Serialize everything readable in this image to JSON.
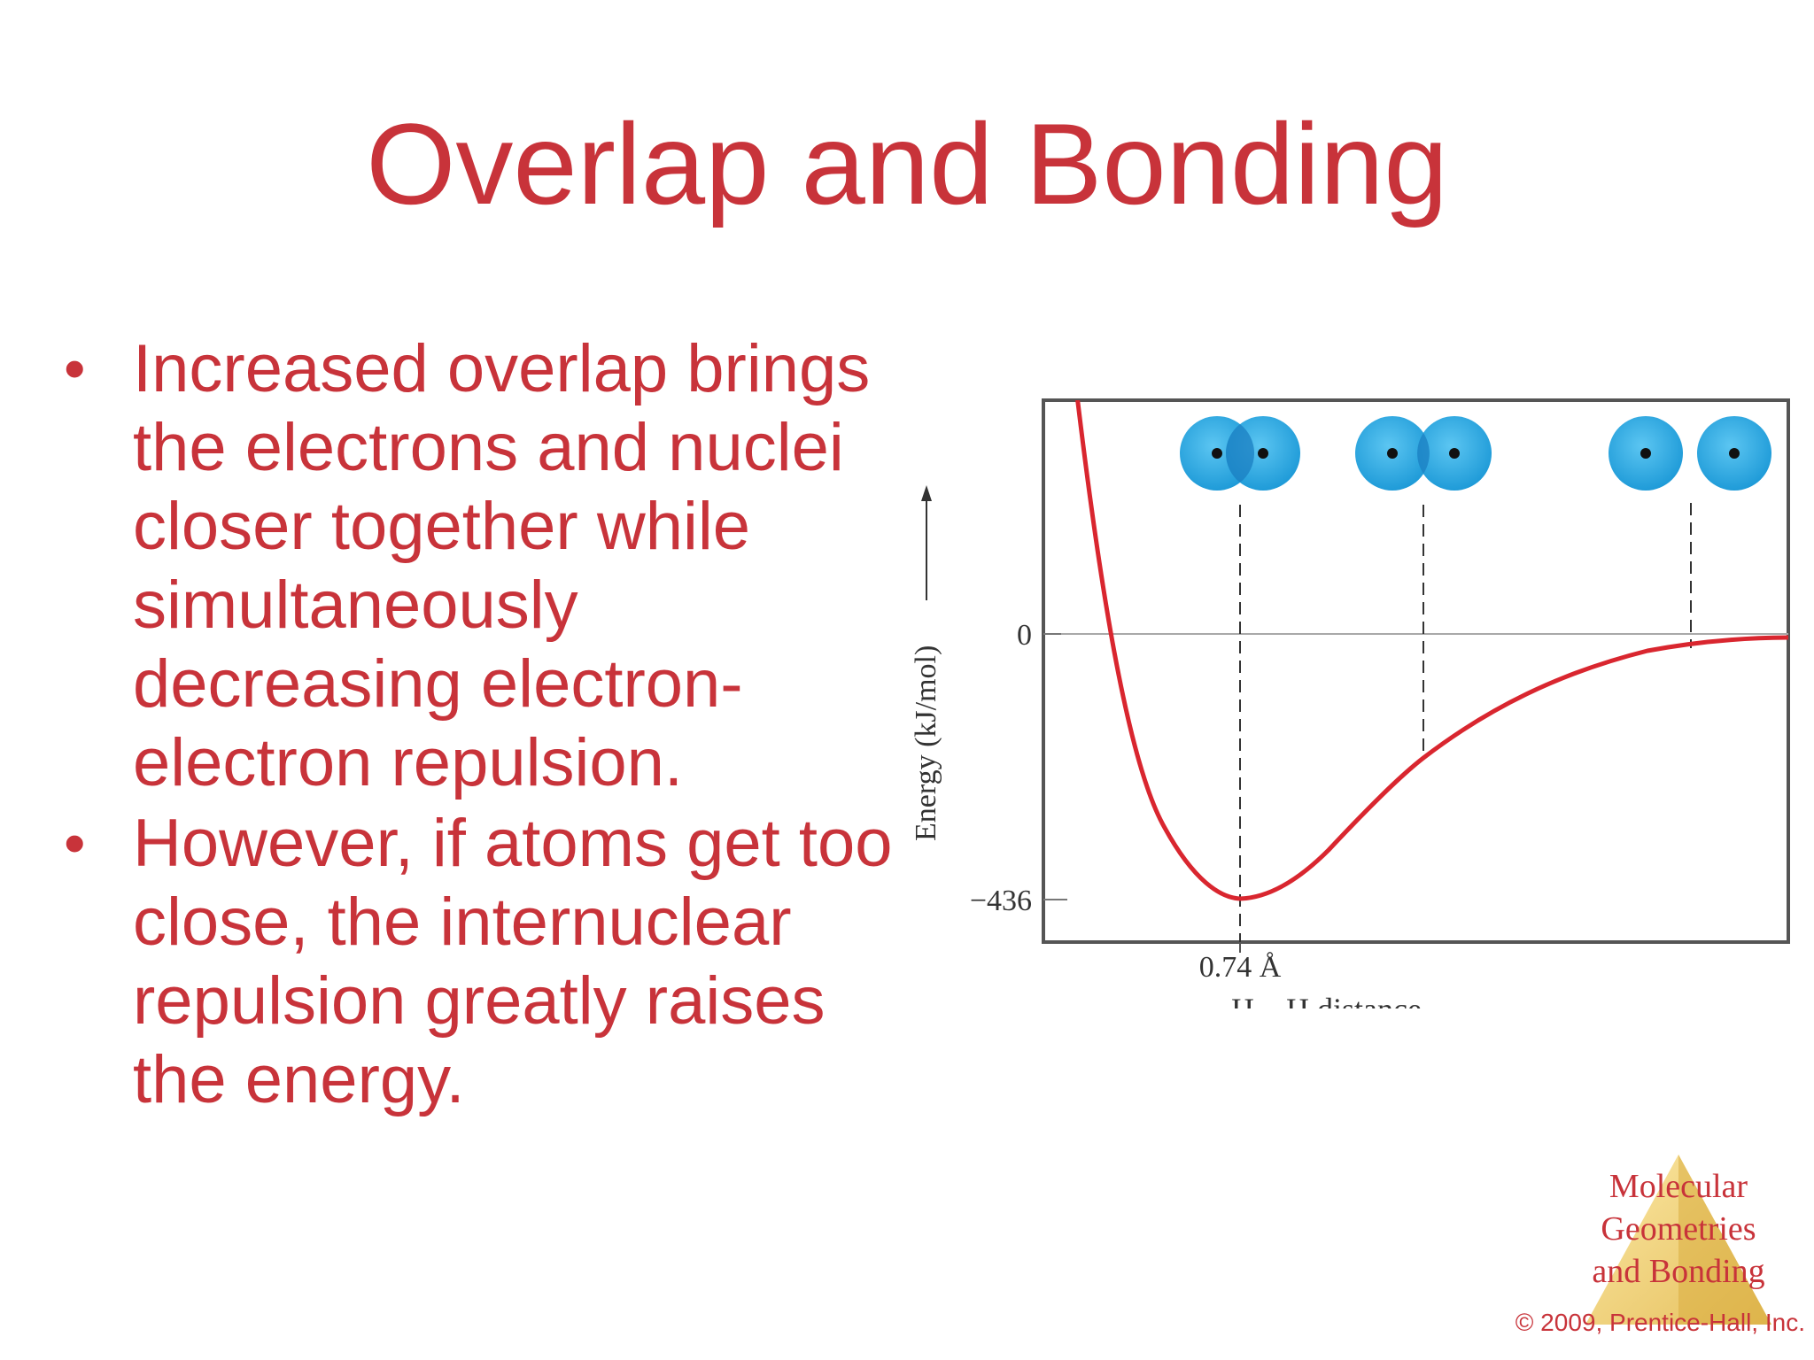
{
  "slide": {
    "title": "Overlap and Bonding",
    "bullets": [
      {
        "marker": "•",
        "lines": [
          "Increased overlap brings",
          "the electrons and nuclei",
          "closer together while",
          "simultaneously",
          "decreasing electron-",
          "electron repulsion."
        ]
      },
      {
        "marker": "•",
        "lines": [
          "However, if atoms get too",
          "close, the internuclear",
          "repulsion greatly raises",
          "the energy."
        ]
      }
    ]
  },
  "figure": {
    "y_axis_label": "Energy (kJ/mol)",
    "y_tick_zero": "0",
    "y_tick_min": "−436",
    "x_tick_bond_length": "0.74 Å",
    "x_axis_label": "H—H distance",
    "colors": {
      "curve": "#d9262f",
      "atom": "#29a9e1",
      "atom_overlap": "#1b7fc1",
      "frame": "#555555"
    }
  },
  "footer": {
    "logo_lines": [
      "Molecular",
      "Geometries",
      "and Bonding"
    ],
    "copyright": "© 2009, Prentice-Hall, Inc."
  }
}
